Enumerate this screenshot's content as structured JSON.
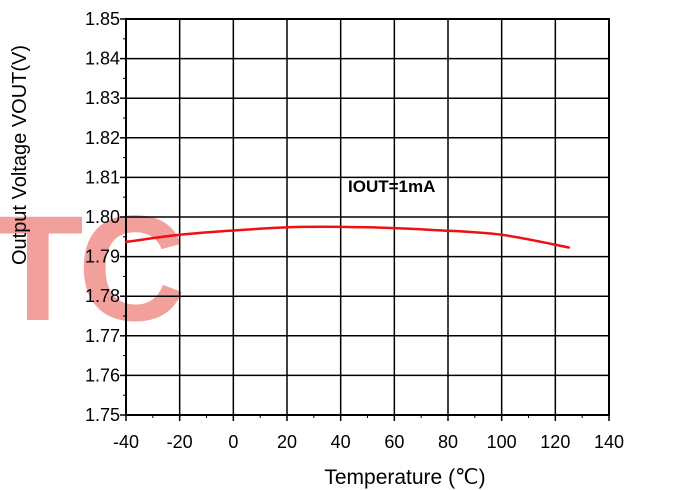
{
  "chart_data": {
    "type": "line",
    "xlabel": "Temperature (℃)",
    "ylabel": "Output Voltage VOUT(V)",
    "annotation": "IOUT=1mA",
    "watermark": "TC",
    "xlim": [
      -40,
      140
    ],
    "ylim": [
      1.75,
      1.85
    ],
    "xticks": [
      -40,
      -20,
      0,
      20,
      40,
      60,
      80,
      100,
      120,
      140
    ],
    "yticks": [
      1.75,
      1.76,
      1.77,
      1.78,
      1.79,
      1.8,
      1.81,
      1.82,
      1.83,
      1.84,
      1.85
    ],
    "xtick_labels": [
      "-40",
      "-20",
      "0",
      "20",
      "40",
      "60",
      "80",
      "100",
      "120",
      "140"
    ],
    "ytick_labels": [
      "1.75",
      "1.76",
      "1.77",
      "1.78",
      "1.79",
      "1.80",
      "1.81",
      "1.82",
      "1.83",
      "1.84",
      "1.85"
    ],
    "grid": true,
    "colors": {
      "line": "#ee1111",
      "watermark": "#f1a09c",
      "grid": "#000000"
    },
    "series": [
      {
        "x": [
          -40,
          -20,
          0,
          25,
          50,
          75,
          100,
          125
        ],
        "y": [
          1.7937,
          1.7955,
          1.7966,
          1.7975,
          1.7974,
          1.7967,
          1.7955,
          1.7923
        ]
      }
    ]
  }
}
